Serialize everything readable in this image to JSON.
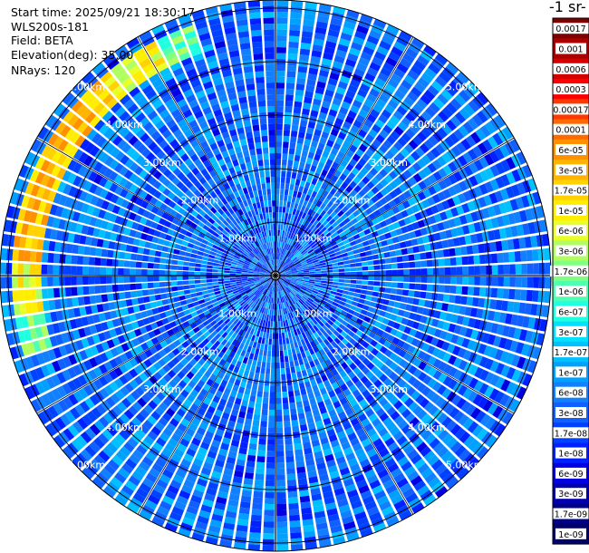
{
  "info": {
    "start_time": "Start time: 2025/09/21 18:30:17",
    "instrument": "WLS200s-181",
    "field": "Field: BETA",
    "elevation": "Elevation(deg): 35.00",
    "nrays": "NRays: 120"
  },
  "colorbar": {
    "title": "-1 sr-",
    "labels": [
      "0.0017",
      "0.001",
      "0.0006",
      "0.0003",
      "0.00017",
      "0.0001",
      "6e-05",
      "3e-05",
      "1.7e-05",
      "1e-05",
      "6e-06",
      "3e-06",
      "1.7e-06",
      "1e-06",
      "6e-07",
      "3e-07",
      "1.7e-07",
      "1e-07",
      "6e-08",
      "3e-08",
      "1.7e-08",
      "1e-08",
      "6e-09",
      "3e-09",
      "1.7e-09",
      "1e-09"
    ],
    "colors": [
      "#7f0000",
      "#a80000",
      "#d40000",
      "#ff0000",
      "#ff3a00",
      "#ff6a00",
      "#ff9000",
      "#ffb400",
      "#ffd200",
      "#ffee00",
      "#e8ff2a",
      "#b0ff60",
      "#80ff80",
      "#50ffb0",
      "#20ffe0",
      "#00e0ff",
      "#00c0ff",
      "#00a0ff",
      "#1080ff",
      "#1060ff",
      "#0040ff",
      "#0020ff",
      "#0000e0",
      "#0000b0",
      "#000088",
      "#00006a"
    ]
  },
  "chart_data": {
    "type": "heatmap",
    "projection": "polar PPI",
    "field": "BETA",
    "nrays": 120,
    "range_rings_km": [
      1,
      2,
      3,
      4,
      5
    ],
    "range_labels": [
      "1.00km",
      "2.00km",
      "3.00km",
      "4.00km",
      "5.00km"
    ],
    "max_range_km": 5.0,
    "dominant_value": "3e-08 to 1e-07",
    "high_band": {
      "azimuth_deg": [
        250,
        340
      ],
      "range_km": [
        4.4,
        4.9
      ],
      "value": "1e-06 to 3e-05"
    }
  }
}
